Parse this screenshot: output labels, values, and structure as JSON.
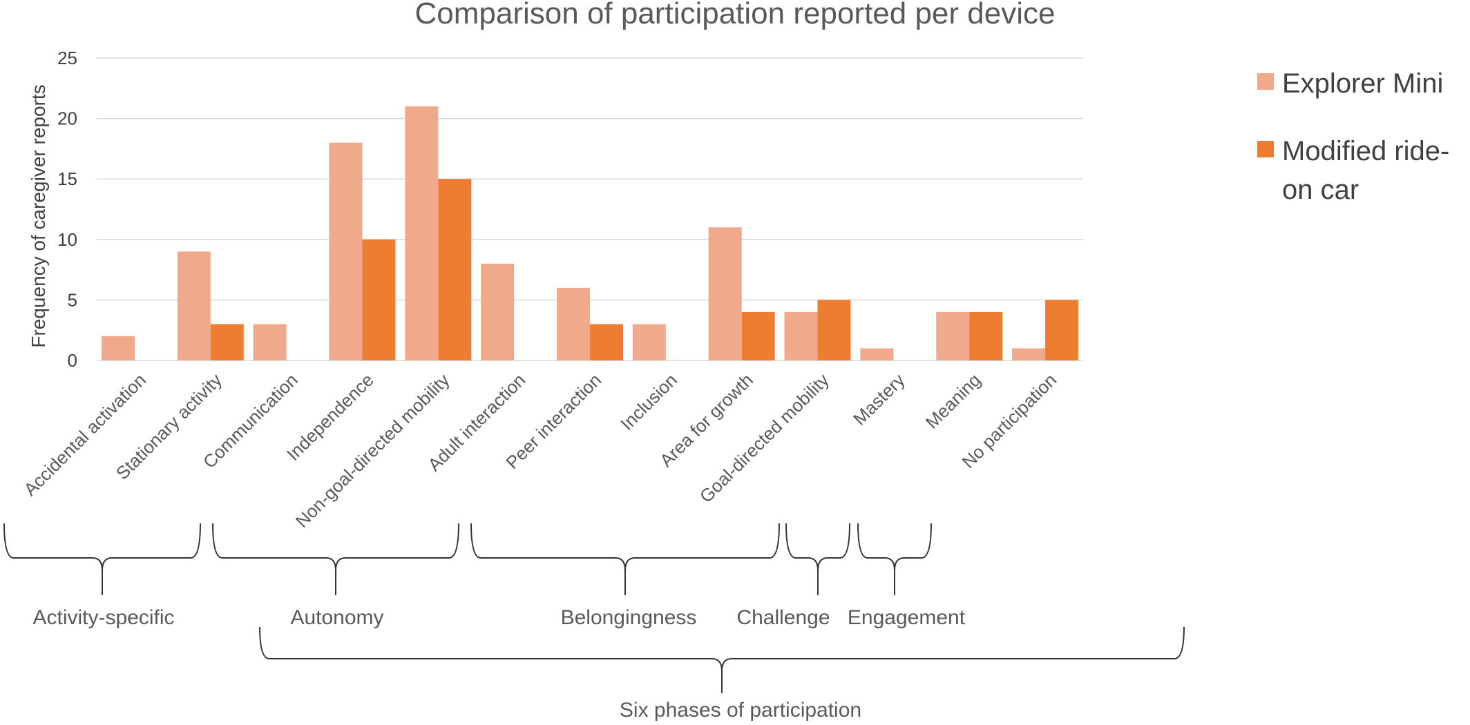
{
  "chart_data": {
    "type": "bar",
    "title": "Comparison of participation reported per device",
    "ylabel": "Frequency of caregiver reports",
    "xlabel": "",
    "ylim": [
      0,
      25
    ],
    "yticks": [
      "0",
      "5",
      "10",
      "15",
      "20",
      "25"
    ],
    "grid": true,
    "legend_position": "top-right",
    "categories": [
      "Accidental activation",
      "Stationary activity",
      "Communication",
      "Independence",
      "Non-goal-directed mobility",
      "Adult interaction",
      "Peer interaction",
      "Inclusion",
      "Area for growth",
      "Goal-directed mobility",
      "Mastery",
      "Meaning",
      "No participation"
    ],
    "series": [
      {
        "name": "Explorer Mini",
        "color": "#f1a98c",
        "values": [
          2,
          9,
          3,
          18,
          21,
          8,
          6,
          3,
          11,
          4,
          1,
          4,
          1
        ]
      },
      {
        "name": "Modified ride-on car",
        "color": "#ed7d31",
        "values": [
          0,
          3,
          0,
          10,
          15,
          0,
          3,
          0,
          4,
          5,
          0,
          4,
          5
        ]
      }
    ],
    "legend_lines": [
      [
        "Explorer Mini"
      ],
      [
        "Modified ride-",
        "on car"
      ]
    ],
    "groups": [
      {
        "label": "Activity-specific",
        "from": 0,
        "to": 1
      },
      {
        "label": "Autonomy",
        "from": 2,
        "to": 4
      },
      {
        "label": "Belongingness",
        "from": 5,
        "to": 7
      },
      {
        "label": "Challenge",
        "from": 7,
        "to": 7
      },
      {
        "label": "Engagement",
        "from": 8,
        "to": 8
      }
    ],
    "super_group": {
      "label": "Six phases of participation",
      "from": 2,
      "to": 11
    }
  }
}
